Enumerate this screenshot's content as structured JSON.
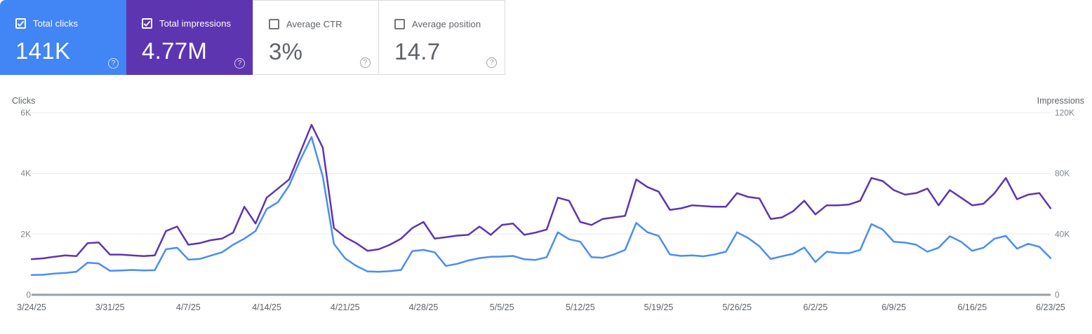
{
  "header": {
    "cards": [
      {
        "label": "Total clicks",
        "value": "141K",
        "checked": true
      },
      {
        "label": "Total impressions",
        "value": "4.77M",
        "checked": true
      },
      {
        "label": "Average CTR",
        "value": "3%",
        "checked": false
      },
      {
        "label": "Average position",
        "value": "14.7",
        "checked": false
      }
    ],
    "help_glyph": "?"
  },
  "colors": {
    "clicks_card_bg": "#4285f4",
    "impressions_card_bg": "#5e35b1",
    "clicks_line": "#4a8df5",
    "impressions_line": "#5e35b1",
    "gridline": "#e9eaed",
    "zero_axis": "#9aa0a6",
    "tick_label": "#80868b",
    "axis_title": "#5f6368",
    "date_label": "#5f6368"
  },
  "chart_data": {
    "type": "line",
    "num_points": 92,
    "x_granularity": "daily",
    "x_tick_indices": [
      0,
      7,
      14,
      21,
      28,
      35,
      42,
      49,
      56,
      63,
      70,
      77,
      84,
      91
    ],
    "x_tick_labels": [
      "3/24/25",
      "3/31/25",
      "4/7/25",
      "4/14/25",
      "4/21/25",
      "4/28/25",
      "5/5/25",
      "5/12/25",
      "5/19/25",
      "5/26/25",
      "6/2/25",
      "6/9/25",
      "6/16/25",
      "6/23/25"
    ],
    "left_axis": {
      "title": "Clicks",
      "range": [
        0,
        6000
      ],
      "tick_values": [
        0,
        2000,
        4000,
        6000
      ],
      "tick_labels": [
        "0",
        "2K",
        "4K",
        "6K"
      ]
    },
    "right_axis": {
      "title": "Impressions",
      "range": [
        0,
        120000
      ],
      "tick_values": [
        0,
        40000,
        80000,
        120000
      ],
      "tick_labels": [
        "0",
        "40K",
        "80K",
        "120K"
      ]
    },
    "grid": "horizontal",
    "legend": "none",
    "series": [
      {
        "name": "Total clicks",
        "axis": "left",
        "color": "#4a8df5",
        "values": [
          650,
          660,
          700,
          720,
          760,
          1060,
          1030,
          790,
          800,
          820,
          800,
          810,
          1500,
          1550,
          1160,
          1180,
          1290,
          1400,
          1650,
          1850,
          2100,
          2830,
          3050,
          3600,
          4450,
          5200,
          3900,
          1680,
          1200,
          950,
          770,
          760,
          780,
          820,
          1440,
          1480,
          1400,
          950,
          1020,
          1130,
          1210,
          1250,
          1260,
          1280,
          1170,
          1150,
          1240,
          2060,
          1830,
          1750,
          1240,
          1220,
          1330,
          1480,
          2370,
          2060,
          1940,
          1330,
          1280,
          1300,
          1270,
          1330,
          1420,
          2060,
          1870,
          1600,
          1180,
          1270,
          1350,
          1560,
          1080,
          1420,
          1380,
          1370,
          1480,
          2330,
          2150,
          1750,
          1720,
          1650,
          1420,
          1550,
          1930,
          1750,
          1450,
          1550,
          1850,
          1940,
          1520,
          1680,
          1580,
          1210
        ]
      },
      {
        "name": "Total impressions",
        "axis": "right",
        "color": "#5e35b1",
        "values": [
          23500,
          24000,
          25000,
          26000,
          25500,
          34000,
          34500,
          26500,
          26500,
          26000,
          25500,
          26000,
          42000,
          45000,
          33000,
          34000,
          36000,
          37000,
          41000,
          58000,
          47000,
          64000,
          70000,
          76000,
          94000,
          112000,
          97000,
          44000,
          38000,
          34000,
          29000,
          30000,
          33000,
          37000,
          44000,
          48000,
          37000,
          38000,
          39000,
          39500,
          45000,
          39500,
          46000,
          47000,
          39500,
          41000,
          43000,
          64000,
          62000,
          48000,
          46000,
          50000,
          51000,
          52000,
          76000,
          71000,
          68000,
          56000,
          57000,
          59000,
          58500,
          58000,
          58000,
          67000,
          64500,
          63500,
          50000,
          51000,
          55000,
          62000,
          53000,
          59000,
          59000,
          59500,
          62000,
          77000,
          75000,
          69000,
          66000,
          67000,
          70000,
          59000,
          69000,
          64000,
          59000,
          60000,
          67000,
          77000,
          63000,
          66000,
          67000,
          57000
        ]
      }
    ]
  }
}
